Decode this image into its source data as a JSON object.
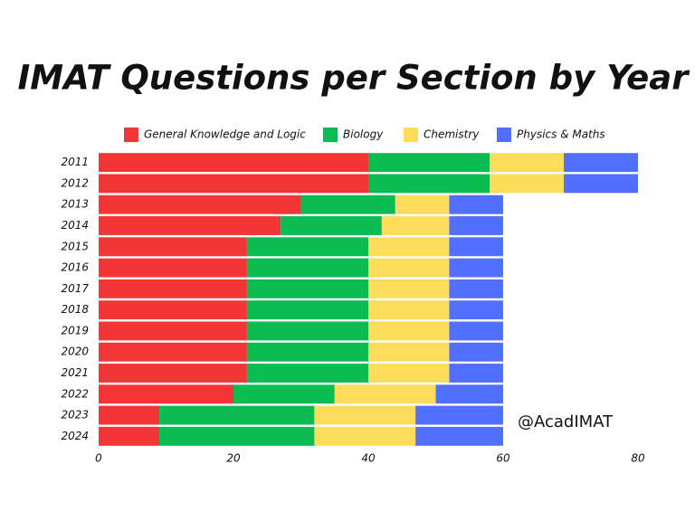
{
  "chart_data": {
    "type": "stacked-bar-horizontal",
    "title": "IMAT Questions per Section by Year",
    "annotation": "@AcadIMAT",
    "categories": [
      "2011",
      "2012",
      "2013",
      "2014",
      "2015",
      "2016",
      "2017",
      "2018",
      "2019",
      "2020",
      "2021",
      "2022",
      "2023",
      "2024"
    ],
    "series": [
      {
        "name": "General Knowledge and Logic",
        "color": "#f23535",
        "values": [
          40,
          40,
          30,
          27,
          22,
          22,
          22,
          22,
          22,
          22,
          22,
          20,
          9,
          9
        ]
      },
      {
        "name": "Biology",
        "color": "#0cbb52",
        "values": [
          18,
          18,
          14,
          15,
          18,
          18,
          18,
          18,
          18,
          18,
          18,
          15,
          23,
          23
        ]
      },
      {
        "name": "Chemistry",
        "color": "#fddc5c",
        "values": [
          11,
          11,
          8,
          10,
          12,
          12,
          12,
          12,
          12,
          12,
          12,
          15,
          15,
          15
        ]
      },
      {
        "name": "Physics & Maths",
        "color": "#5170ff",
        "values": [
          11,
          11,
          8,
          8,
          8,
          8,
          8,
          8,
          8,
          8,
          8,
          10,
          13,
          13
        ]
      }
    ],
    "xlim": [
      0,
      80
    ],
    "xticks": [
      0,
      20,
      40,
      60,
      80
    ],
    "grid": false
  }
}
